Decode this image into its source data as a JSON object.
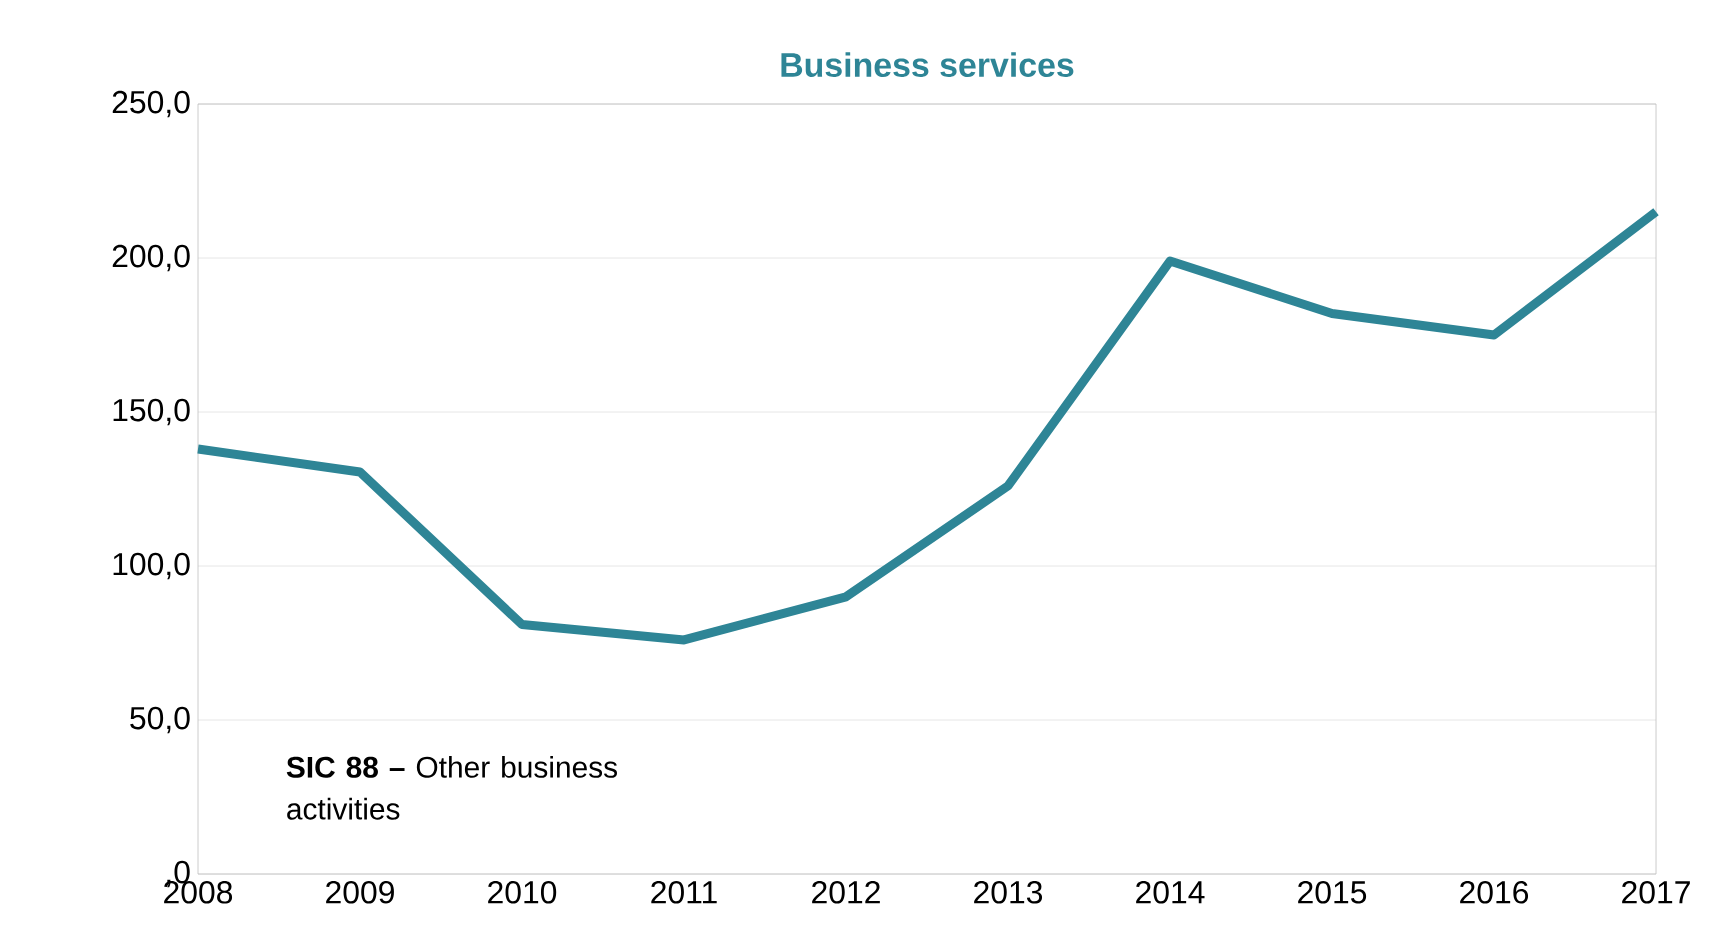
{
  "chart_data": {
    "type": "line",
    "title": "Business services",
    "categories": [
      "2008",
      "2009",
      "2010",
      "2011",
      "2012",
      "2013",
      "2014",
      "2015",
      "2016",
      "2017"
    ],
    "series": [
      {
        "color": "#2e8596",
        "values": [
          138,
          130.5,
          81,
          76,
          90,
          126,
          199,
          182,
          175,
          215
        ]
      }
    ],
    "ylim": [
      0,
      250
    ],
    "yticks": [
      {
        "value": 0,
        "label": ",0"
      },
      {
        "value": 50,
        "label": "50,0"
      },
      {
        "value": 100,
        "label": "100,0"
      },
      {
        "value": 150,
        "label": "150,0"
      },
      {
        "value": 200,
        "label": "200,0"
      },
      {
        "value": 250,
        "label": "250,0"
      }
    ],
    "grid": "y",
    "marker": "none",
    "line_style": "solid",
    "annotations": [
      "**SIC 88 –** Other business activities"
    ]
  }
}
